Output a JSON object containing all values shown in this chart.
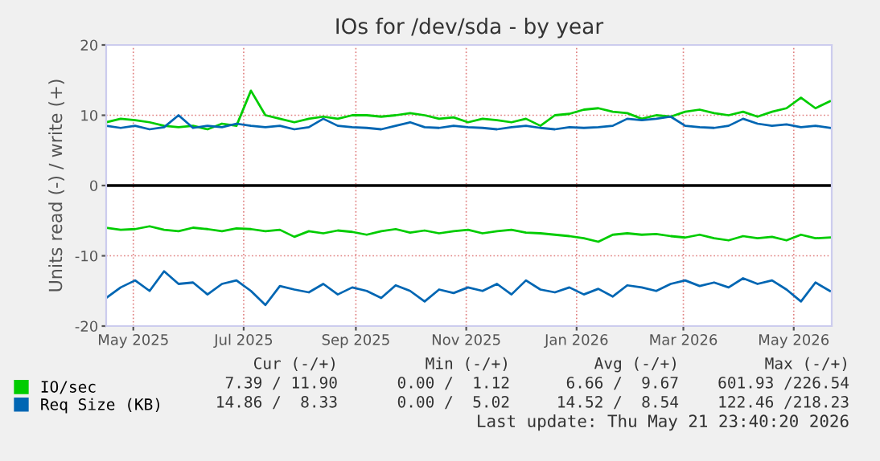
{
  "chart_data": {
    "type": "line",
    "title": "IOs for /dev/sda - by year",
    "ylabel": "Units read (-) / write (+)",
    "x": [
      "2025-04-16",
      "2025-04-24",
      "2025-05-02",
      "2025-05-10",
      "2025-05-18",
      "2025-05-26",
      "2025-06-03",
      "2025-06-11",
      "2025-06-19",
      "2025-06-27",
      "2025-07-05",
      "2025-07-13",
      "2025-07-21",
      "2025-07-29",
      "2025-08-06",
      "2025-08-14",
      "2025-08-22",
      "2025-08-30",
      "2025-09-07",
      "2025-09-15",
      "2025-09-23",
      "2025-10-01",
      "2025-10-09",
      "2025-10-17",
      "2025-10-25",
      "2025-11-02",
      "2025-11-10",
      "2025-11-18",
      "2025-11-26",
      "2025-12-04",
      "2025-12-12",
      "2025-12-20",
      "2025-12-28",
      "2026-01-05",
      "2026-01-13",
      "2026-01-21",
      "2026-01-29",
      "2026-02-06",
      "2026-02-14",
      "2026-02-22",
      "2026-03-02",
      "2026-03-10",
      "2026-03-18",
      "2026-03-26",
      "2026-04-03",
      "2026-04-11",
      "2026-04-19",
      "2026-04-27",
      "2026-05-05",
      "2026-05-13",
      "2026-05-21"
    ],
    "series": [
      {
        "name": "IO/sec",
        "color": "#00cc00",
        "values": [
          9,
          9.5,
          9.3,
          9,
          8.5,
          8.3,
          8.5,
          8,
          8.8,
          8.5,
          13.5,
          10,
          9.5,
          9,
          9.5,
          9.8,
          9.5,
          10,
          10,
          9.8,
          10,
          10.3,
          10,
          9.5,
          9.7,
          9,
          9.5,
          9.3,
          9,
          9.5,
          8.5,
          10,
          10.2,
          10.8,
          11,
          10.5,
          10.3,
          9.5,
          10,
          9.8,
          10.5,
          10.8,
          10.3,
          10,
          10.5,
          9.8,
          10.5,
          11,
          12.5,
          11,
          12
        ]
      },
      {
        "color": "#00cc00",
        "values": [
          -6,
          -6.3,
          -6.2,
          -5.8,
          -6.3,
          -6.5,
          -6,
          -6.2,
          -6.5,
          -6.1,
          -6.2,
          -6.5,
          -6.3,
          -7.3,
          -6.5,
          -6.8,
          -6.4,
          -6.6,
          -7,
          -6.5,
          -6.2,
          -6.7,
          -6.4,
          -6.8,
          -6.5,
          -6.3,
          -6.8,
          -6.5,
          -6.3,
          -6.7,
          -6.8,
          -7,
          -7.2,
          -7.5,
          -8,
          -7,
          -6.8,
          -7,
          -6.9,
          -7.2,
          -7.4,
          -7,
          -7.5,
          -7.8,
          -7.2,
          -7.5,
          -7.3,
          -7.8,
          -7,
          -7.5,
          -7.4
        ]
      },
      {
        "name": "Req Size (KB)",
        "color": "#0066b3",
        "values": [
          8.5,
          8.2,
          8.5,
          8,
          8.3,
          10,
          8.2,
          8.5,
          8.3,
          8.8,
          8.5,
          8.3,
          8.5,
          8,
          8.3,
          9.5,
          8.5,
          8.3,
          8.2,
          8,
          8.5,
          9,
          8.3,
          8.2,
          8.5,
          8.3,
          8.2,
          8,
          8.3,
          8.5,
          8.2,
          8,
          8.3,
          8.2,
          8.3,
          8.5,
          9.5,
          9.3,
          9.5,
          9.8,
          8.5,
          8.3,
          8.2,
          8.5,
          9.5,
          8.8,
          8.5,
          8.7,
          8.3,
          8.5,
          8.2
        ]
      },
      {
        "color": "#0066b3",
        "values": [
          -16,
          -14.5,
          -13.5,
          -15,
          -12.2,
          -14,
          -13.8,
          -15.5,
          -14,
          -13.5,
          -15,
          -17,
          -14.3,
          -14.8,
          -15.2,
          -14,
          -15.5,
          -14.5,
          -15,
          -16,
          -14.2,
          -15,
          -16.5,
          -14.8,
          -15.3,
          -14.5,
          -15,
          -14,
          -15.5,
          -13.5,
          -14.8,
          -15.2,
          -14.5,
          -15.5,
          -14.7,
          -15.8,
          -14.2,
          -14.5,
          -15,
          -14,
          -13.5,
          -14.3,
          -13.8,
          -14.5,
          -13.2,
          -14,
          -13.5,
          -14.8,
          -16.5,
          -13.8,
          -15
        ]
      }
    ],
    "xlim": [
      "2025-04-16",
      "2026-05-22"
    ],
    "xticks": [
      {
        "value": "2025-05-01",
        "label": "May 2025"
      },
      {
        "value": "2025-07-01",
        "label": "Jul 2025"
      },
      {
        "value": "2025-09-01",
        "label": "Sep 2025"
      },
      {
        "value": "2025-11-01",
        "label": "Nov 2025"
      },
      {
        "value": "2026-01-01",
        "label": "Jan 2026"
      },
      {
        "value": "2026-03-01",
        "label": "Mar 2026"
      },
      {
        "value": "2026-05-01",
        "label": "May 2026"
      }
    ],
    "ylim": [
      -20,
      20
    ],
    "yticks": [
      -20,
      -10,
      0,
      10,
      20
    ],
    "grid": true,
    "legend": "bottom left",
    "ref_lines": [
      {
        "axis": "y",
        "value": 0,
        "color": "#000000"
      }
    ],
    "annotations": [
      "Cur (-/+)",
      "Min (-/+)",
      "Avg (-/+)",
      "Max (-/+)",
      "7.39 / 11.90",
      "0.00 /  1.12",
      "6.66 /  9.67",
      "601.93 /226.54",
      "14.86 /  8.33",
      "0.00 /  5.02",
      "14.52 /  8.54",
      "122.46 /218.23",
      "Last update: Thu May 21 23:40:20 2026"
    ]
  }
}
